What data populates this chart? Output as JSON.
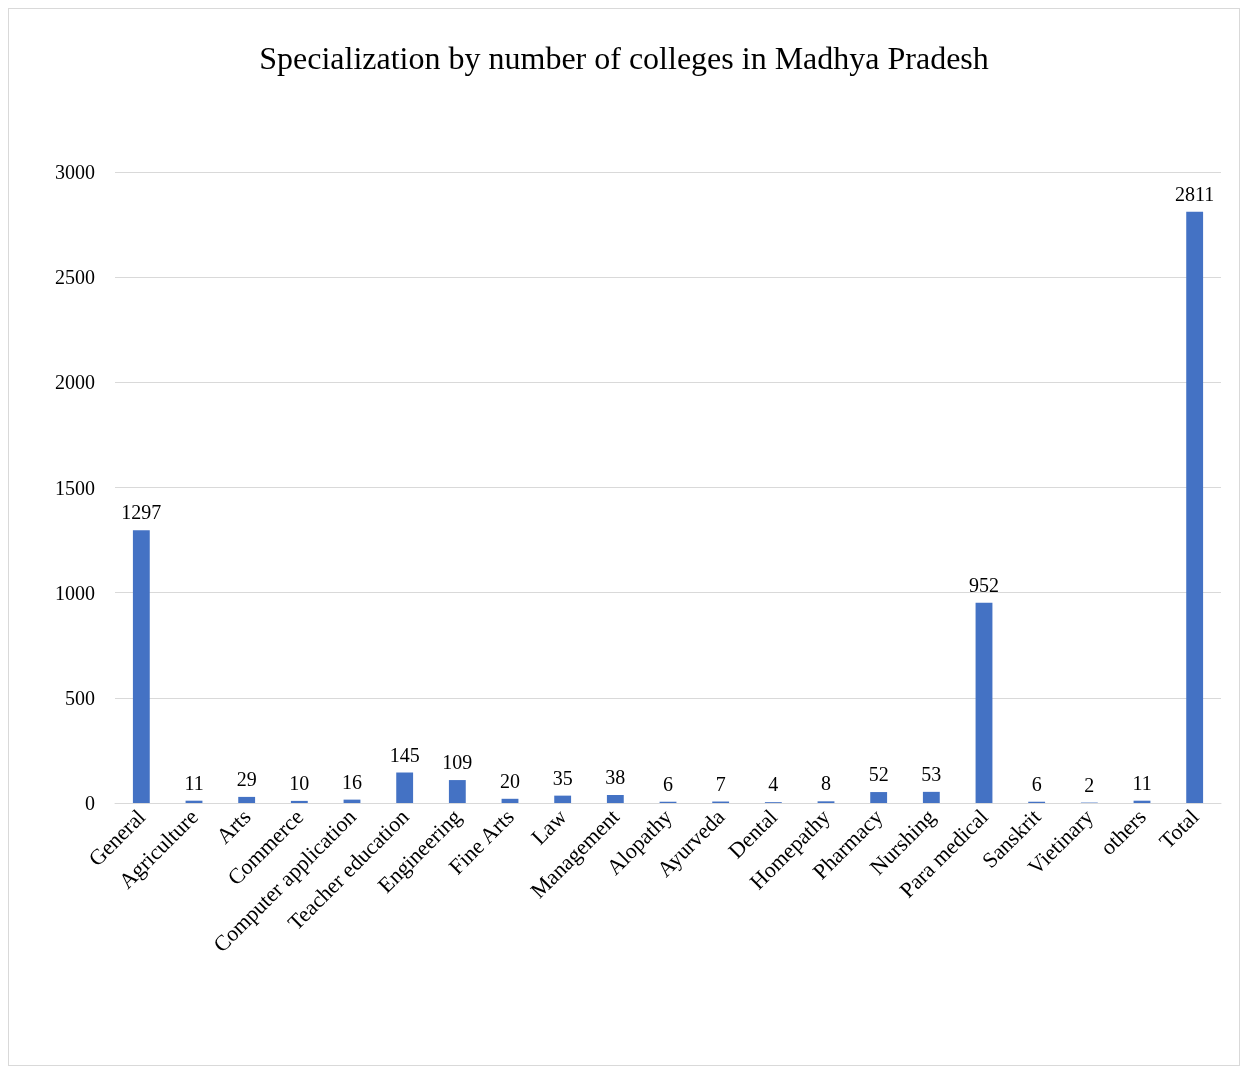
{
  "chart_data": {
    "type": "bar",
    "title": "Specialization by number of colleges in Madhya Pradesh",
    "categories": [
      "General",
      "Agriculture",
      "Arts",
      "Commerce",
      "Computer application",
      "Teacher education",
      "Engineering",
      "Fine Arts",
      "Law",
      "Management",
      "Alopathy",
      "Ayurveda",
      "Dental",
      "Homepathy",
      "Pharmacy",
      "Nurshing",
      "Para medical",
      "Sanskrit",
      "Vietinary",
      "others",
      "Total"
    ],
    "values": [
      1297,
      11,
      29,
      10,
      16,
      145,
      109,
      20,
      35,
      38,
      6,
      7,
      4,
      8,
      52,
      53,
      952,
      6,
      2,
      11,
      2811
    ],
    "color": "#4472c4",
    "ylim": [
      0,
      3000
    ],
    "yticks": [
      0,
      500,
      1000,
      1500,
      2000,
      2500,
      3000
    ],
    "grid": "y",
    "data_labels": true
  }
}
